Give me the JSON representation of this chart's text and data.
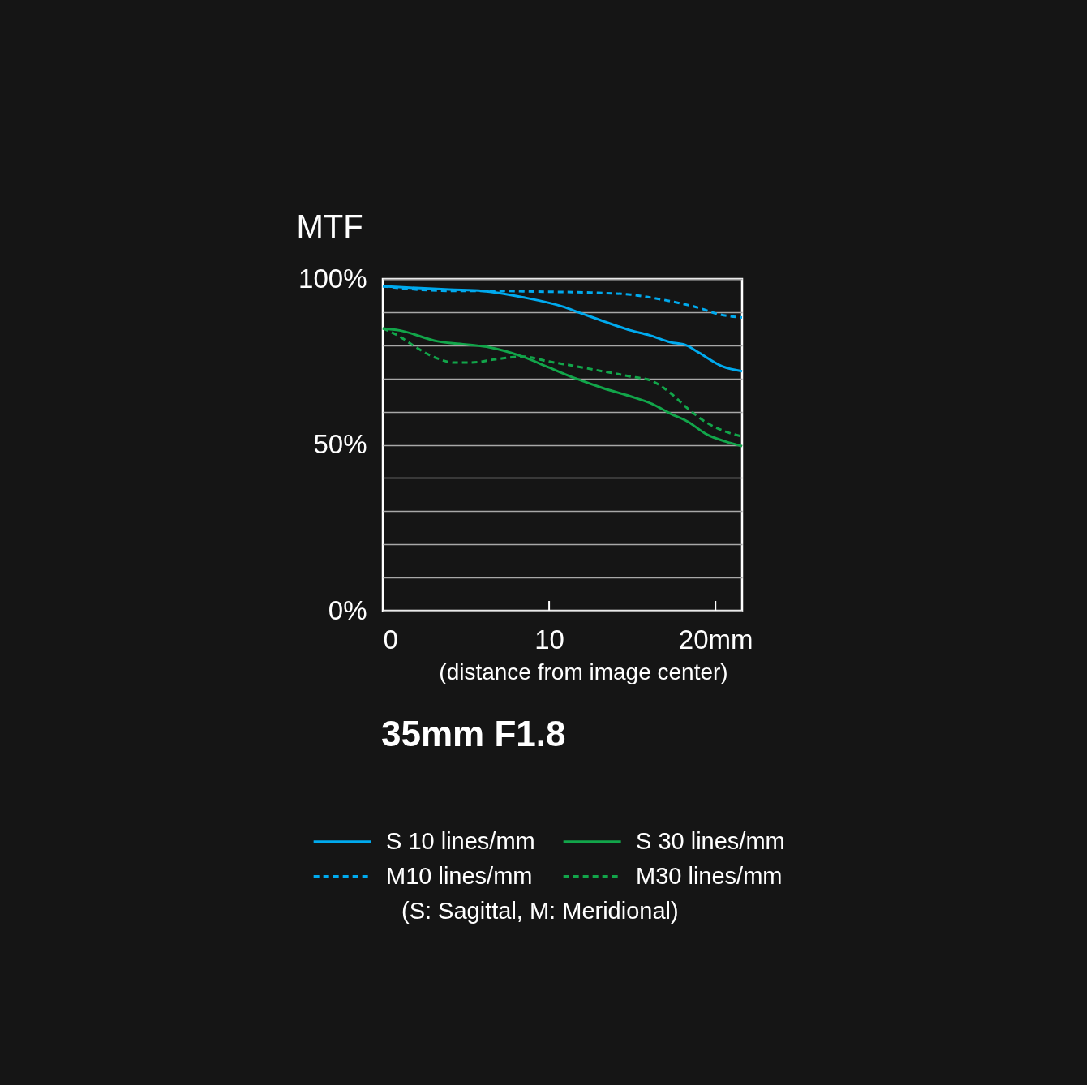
{
  "chart_data": {
    "type": "line",
    "title": "35mm F1.8",
    "ylabel": "MTF",
    "xlabel": "(distance from image center)",
    "xlim": [
      0,
      21.6
    ],
    "xticks": [
      0,
      10,
      {
        "value": 20,
        "label": "20mm"
      }
    ],
    "ylim": [
      0,
      100
    ],
    "yticks": [
      {
        "value": 0,
        "label": "0%"
      },
      {
        "value": 10,
        "label": null
      },
      {
        "value": 20,
        "label": null
      },
      {
        "value": 30,
        "label": null
      },
      {
        "value": 40,
        "label": null
      },
      {
        "value": 50,
        "label": "50%"
      },
      {
        "value": 60,
        "label": null
      },
      {
        "value": 70,
        "label": null
      },
      {
        "value": 80,
        "label": null
      },
      {
        "value": 90,
        "label": null
      },
      {
        "value": 100,
        "label": "100%"
      }
    ],
    "grid": "y",
    "legend": "bottom",
    "annotations": [
      "(S: Sagittal, M: Meridional)"
    ],
    "series": [
      {
        "name": "S 10 lines/mm",
        "color": "#00aaee",
        "line_style": "solid",
        "x": [
          0,
          2,
          4,
          6,
          8.4,
          10.8,
          11.8,
          13.3,
          14.9,
          16.0,
          17.3,
          18.2,
          19.0,
          20.4,
          21.6
        ],
        "values": [
          97.8,
          97.3,
          96.8,
          96.4,
          94.5,
          91.7,
          89.9,
          87.2,
          84.5,
          83.1,
          80.9,
          80.1,
          77.8,
          73.7,
          72.2
        ]
      },
      {
        "name": "S 30 lines/mm",
        "color": "#12a54a",
        "line_style": "solid",
        "x": [
          0,
          1.0,
          3.3,
          5.1,
          6.4,
          8.4,
          10.0,
          11.6,
          13.3,
          14.9,
          16.2,
          17.3,
          18.3,
          19.5,
          20.6,
          21.6
        ],
        "values": [
          85.1,
          84.5,
          81.2,
          80.2,
          79.4,
          76.6,
          73.3,
          70.0,
          67.0,
          64.6,
          62.3,
          59.4,
          57.1,
          53.1,
          51.0,
          49.6
        ]
      },
      {
        "name": "M10 lines/mm",
        "color": "#00aaee",
        "line_style": "dashed",
        "x": [
          0,
          2.7,
          4.3,
          6.8,
          9.2,
          12.5,
          14.9,
          16.0,
          17.3,
          19.0,
          20.1,
          21.6
        ],
        "values": [
          97.8,
          96.6,
          96.4,
          96.4,
          96.2,
          95.9,
          95.3,
          94.5,
          93.3,
          91.3,
          89.5,
          88.4
        ]
      },
      {
        "name": "M30 lines/mm",
        "color": "#12a54a",
        "line_style": "dashed",
        "x": [
          0,
          1.0,
          2.0,
          3.2,
          4.3,
          5.3,
          6.8,
          8.4,
          10.0,
          11.6,
          13.3,
          14.9,
          16.2,
          17.3,
          18.3,
          19.5,
          20.6,
          21.6
        ],
        "values": [
          85.1,
          82.7,
          79.4,
          76.2,
          74.8,
          74.8,
          75.8,
          76.6,
          75.1,
          73.7,
          72.1,
          70.6,
          69.2,
          65.6,
          61.1,
          56.6,
          54.0,
          52.5
        ]
      }
    ]
  }
}
